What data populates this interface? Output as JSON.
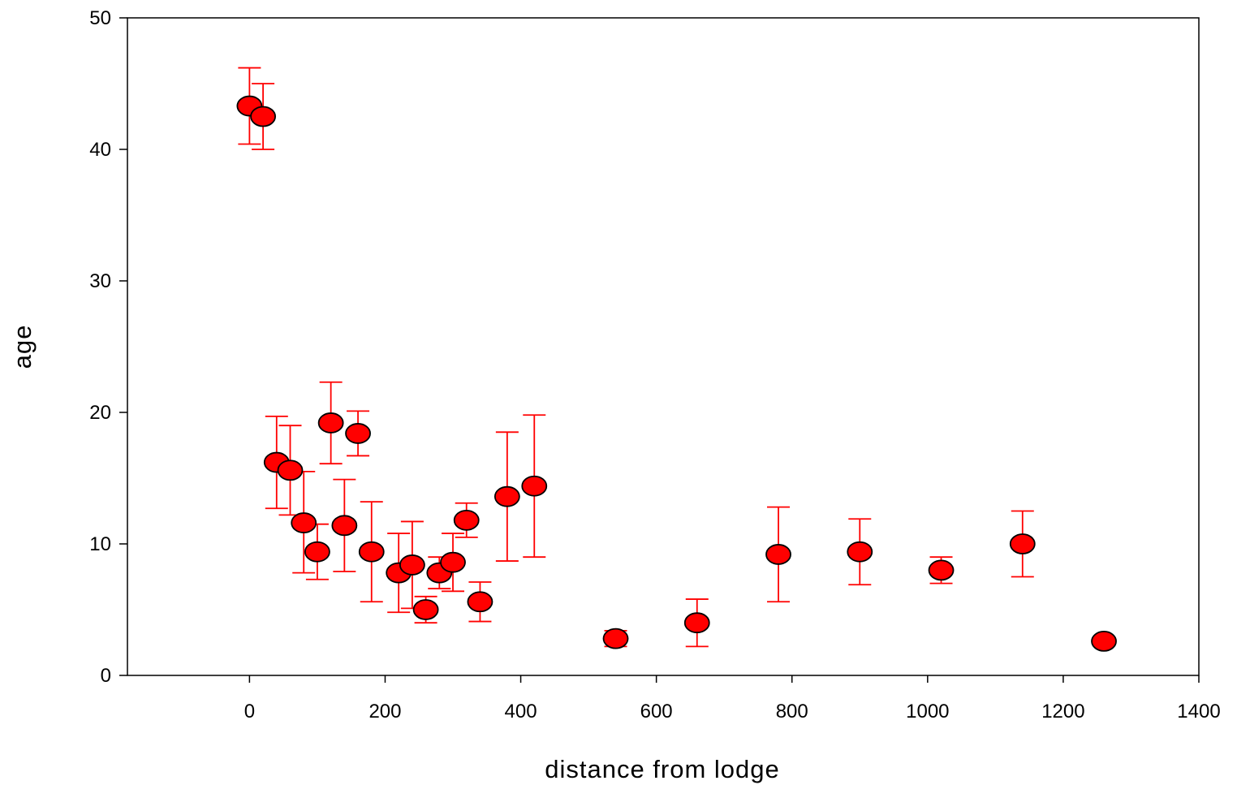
{
  "chart_data": {
    "type": "scatter",
    "title": "",
    "xlabel": "distance from lodge",
    "ylabel": "age",
    "xlim": [
      -180,
      1400
    ],
    "ylim": [
      0,
      50
    ],
    "xticks": [
      0,
      200,
      400,
      600,
      800,
      1000,
      1200,
      1400
    ],
    "yticks": [
      0,
      10,
      20,
      30,
      40,
      50
    ],
    "grid": false,
    "marker_color": "#ff0000",
    "errorbar_color": "#ff0000",
    "points": [
      {
        "x": 0,
        "y": 43.3,
        "lo": 40.4,
        "hi": 46.2
      },
      {
        "x": 20,
        "y": 42.5,
        "lo": 40.0,
        "hi": 45.0
      },
      {
        "x": 40,
        "y": 16.2,
        "lo": 12.7,
        "hi": 19.7
      },
      {
        "x": 60,
        "y": 15.6,
        "lo": 12.2,
        "hi": 19.0
      },
      {
        "x": 80,
        "y": 11.6,
        "lo": 7.8,
        "hi": 15.5
      },
      {
        "x": 100,
        "y": 9.4,
        "lo": 7.3,
        "hi": 11.5
      },
      {
        "x": 120,
        "y": 19.2,
        "lo": 16.1,
        "hi": 22.3
      },
      {
        "x": 140,
        "y": 11.4,
        "lo": 7.9,
        "hi": 14.9
      },
      {
        "x": 160,
        "y": 18.4,
        "lo": 16.7,
        "hi": 20.1
      },
      {
        "x": 180,
        "y": 9.4,
        "lo": 5.6,
        "hi": 13.2
      },
      {
        "x": 220,
        "y": 7.8,
        "lo": 4.8,
        "hi": 10.8
      },
      {
        "x": 240,
        "y": 8.4,
        "lo": 5.1,
        "hi": 11.7
      },
      {
        "x": 260,
        "y": 5.0,
        "lo": 4.0,
        "hi": 6.0
      },
      {
        "x": 280,
        "y": 7.8,
        "lo": 6.6,
        "hi": 9.0
      },
      {
        "x": 300,
        "y": 8.6,
        "lo": 6.4,
        "hi": 10.8
      },
      {
        "x": 320,
        "y": 11.8,
        "lo": 10.5,
        "hi": 13.1
      },
      {
        "x": 340,
        "y": 5.6,
        "lo": 4.1,
        "hi": 7.1
      },
      {
        "x": 380,
        "y": 13.6,
        "lo": 8.7,
        "hi": 18.5
      },
      {
        "x": 420,
        "y": 14.4,
        "lo": 9.0,
        "hi": 19.8
      },
      {
        "x": 540,
        "y": 2.8,
        "lo": 2.2,
        "hi": 3.4
      },
      {
        "x": 660,
        "y": 4.0,
        "lo": 2.2,
        "hi": 5.8
      },
      {
        "x": 780,
        "y": 9.2,
        "lo": 5.6,
        "hi": 12.8
      },
      {
        "x": 900,
        "y": 9.4,
        "lo": 6.9,
        "hi": 11.9
      },
      {
        "x": 1020,
        "y": 8.0,
        "lo": 7.0,
        "hi": 9.0
      },
      {
        "x": 1140,
        "y": 10.0,
        "lo": 7.5,
        "hi": 12.5
      },
      {
        "x": 1260,
        "y": 2.6,
        "lo": null,
        "hi": null
      }
    ]
  }
}
